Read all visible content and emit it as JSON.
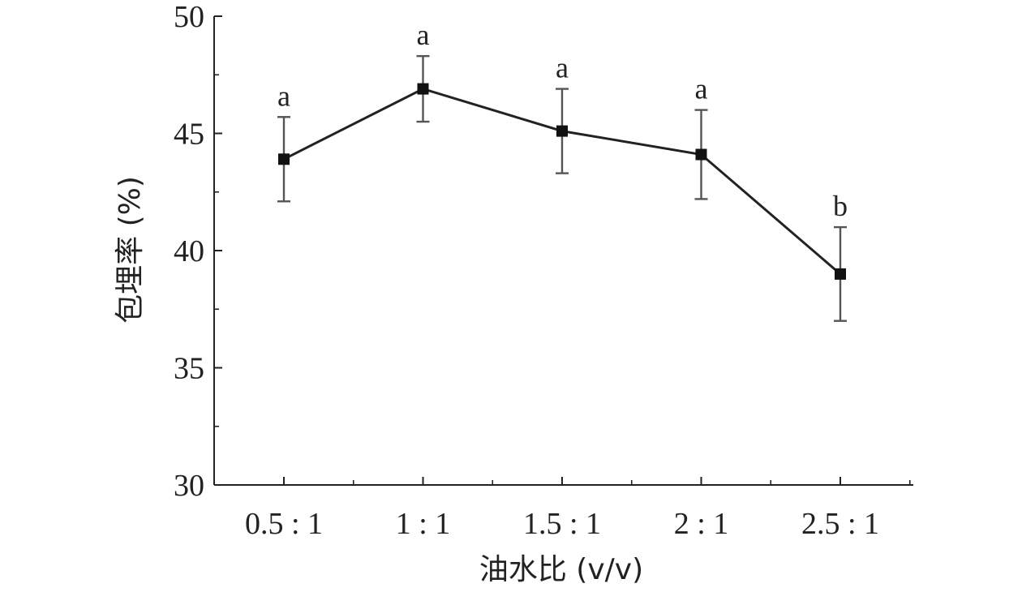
{
  "chart_data": {
    "type": "line",
    "xlabel": "油水比 (v/v)",
    "ylabel": "包埋率 (%)",
    "categories": [
      "0.5 : 1",
      "1 : 1",
      "1.5 : 1",
      "2 : 1",
      "2.5 : 1"
    ],
    "ylim": [
      30,
      50
    ],
    "yticks": [
      "30",
      "35",
      "40",
      "45",
      "50"
    ],
    "series": [
      {
        "values": [
          43.9,
          46.9,
          45.1,
          44.1,
          39.0
        ],
        "errors": [
          1.8,
          1.4,
          1.8,
          1.9,
          2.0
        ],
        "labels": [
          "a",
          "a",
          "a",
          "a",
          "b"
        ]
      }
    ],
    "grid": false,
    "legend": "none"
  }
}
